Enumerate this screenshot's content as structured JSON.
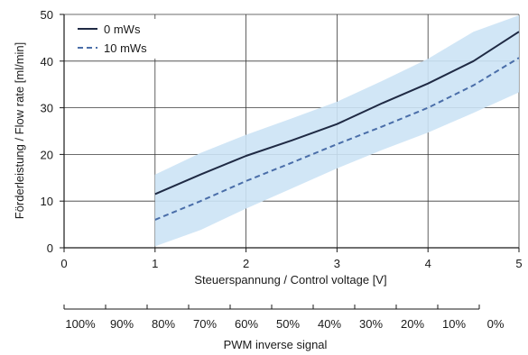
{
  "chart_data": {
    "type": "line",
    "xlabel": "Steuerspannung / Control voltage [V]",
    "ylabel": "Förderleistung / Flow rate [ml/min]",
    "xlim": [
      0,
      5
    ],
    "ylim": [
      0,
      50
    ],
    "x_ticks": [
      0,
      1,
      2,
      3,
      4,
      5
    ],
    "y_ticks": [
      0,
      10,
      20,
      30,
      40,
      50
    ],
    "grid": true,
    "legend_position": "top-left",
    "series": [
      {
        "name": "0 mWs",
        "color": "#1f2a44",
        "style": "solid",
        "x": [
          1.0,
          1.5,
          2.0,
          2.5,
          3.0,
          3.5,
          4.0,
          4.5,
          5.0
        ],
        "y": [
          11.5,
          15.7,
          19.7,
          23.0,
          26.5,
          31.0,
          35.2,
          40.0,
          46.3
        ]
      },
      {
        "name": "10 mWs",
        "color": "#4a6ea9",
        "style": "dashed",
        "x": [
          1.0,
          1.5,
          2.0,
          2.5,
          3.0,
          3.5,
          4.0,
          4.5,
          5.0
        ],
        "y": [
          6.0,
          10.0,
          14.3,
          18.2,
          22.2,
          26.0,
          30.0,
          34.8,
          40.7
        ]
      }
    ],
    "band": {
      "color": "#cce3f5",
      "x": [
        1.0,
        1.5,
        2.0,
        2.5,
        3.0,
        3.5,
        4.0,
        4.5,
        5.0
      ],
      "upper": [
        15.7,
        20.3,
        24.2,
        27.7,
        31.3,
        35.8,
        40.5,
        46.3,
        49.8
      ],
      "lower": [
        0.3,
        3.8,
        8.4,
        12.7,
        17.0,
        21.0,
        24.7,
        28.9,
        33.3
      ]
    },
    "secondary_axis": {
      "label": "PWM inverse signal",
      "ticks": [
        "100%",
        "90%",
        "80%",
        "70%",
        "60%",
        "50%",
        "40%",
        "30%",
        "20%",
        "10%",
        "0%"
      ]
    }
  }
}
